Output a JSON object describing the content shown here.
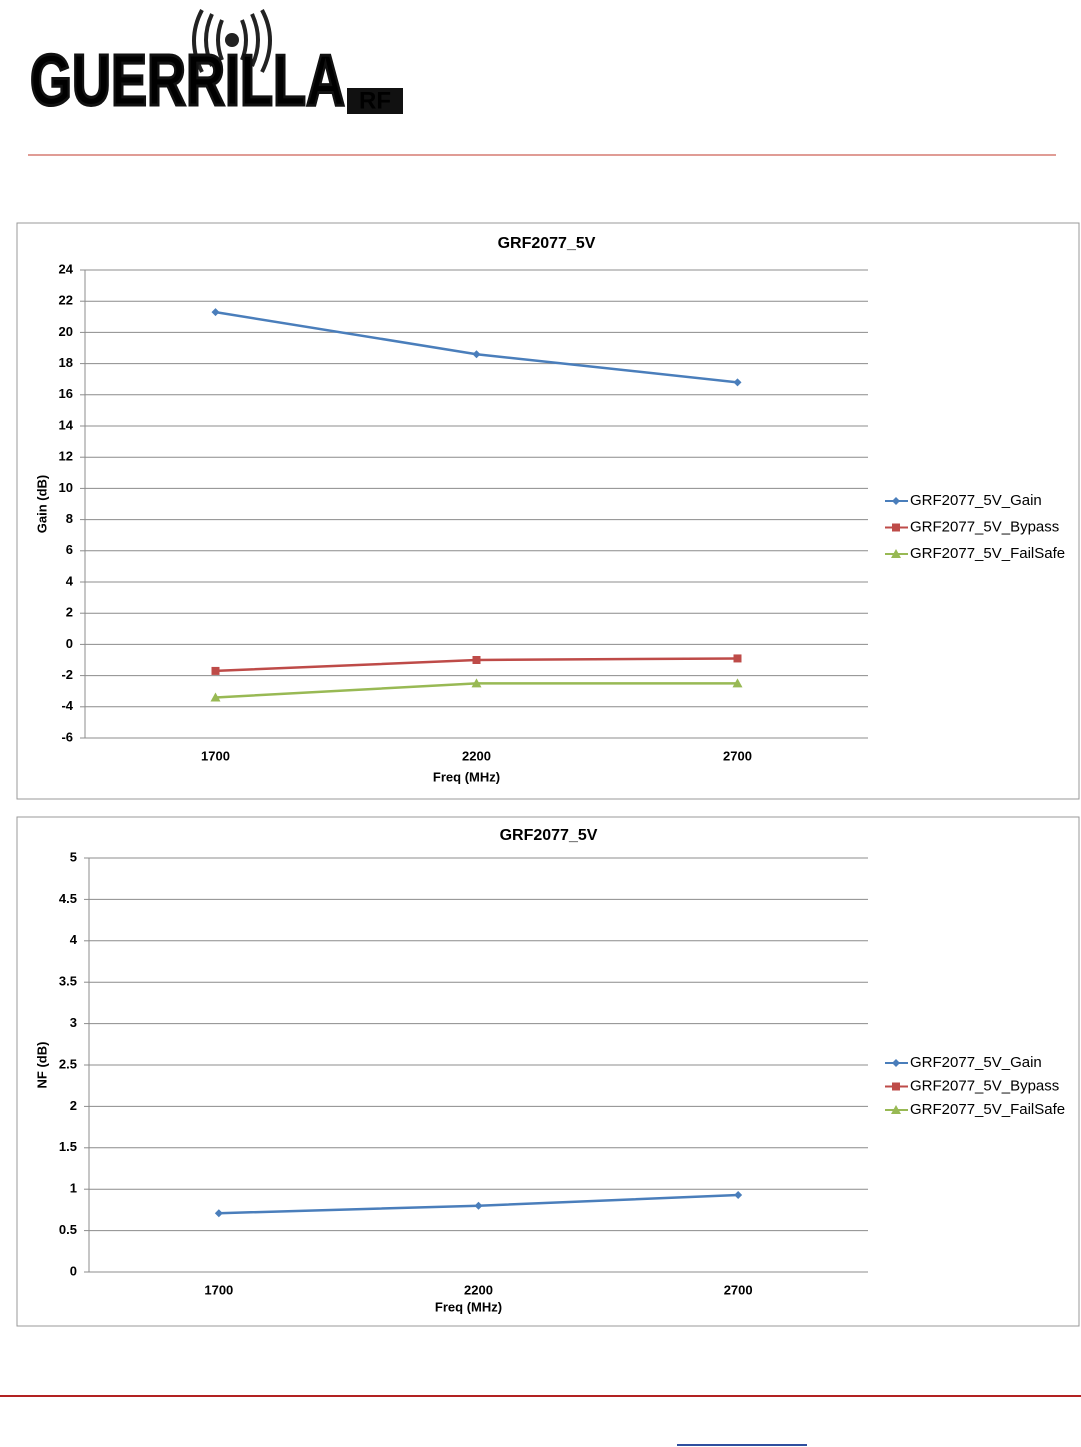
{
  "logo": {
    "name": "GUERRILLA",
    "suffix": "RF"
  },
  "chart_data": [
    {
      "type": "line",
      "title": "GRF2077_5V",
      "x_label": "Freq (MHz)",
      "y_label": "Gain (dB)",
      "categories": [
        "1700",
        "2200",
        "2700"
      ],
      "series": [
        {
          "name": "GRF2077_5V_Gain",
          "color": "#4a7ebb",
          "marker": "diamond",
          "values": [
            21.3,
            18.6,
            16.8
          ]
        },
        {
          "name": "GRF2077_5V_Bypass",
          "color": "#be4b48",
          "marker": "square",
          "values": [
            -1.7,
            -1.0,
            -0.9
          ]
        },
        {
          "name": "GRF2077_5V_FailSafe",
          "color": "#98b954",
          "marker": "triangle",
          "values": [
            -3.4,
            -2.5,
            -2.5
          ]
        }
      ],
      "ylim": [
        -6,
        24
      ],
      "yticks": [
        -6,
        -4,
        -2,
        0,
        2,
        4,
        6,
        8,
        10,
        12,
        14,
        16,
        18,
        20,
        22,
        24
      ],
      "grid": true,
      "legend": "right"
    },
    {
      "type": "line",
      "title": "GRF2077_5V",
      "x_label": "Freq (MHz)",
      "y_label": "NF (dB)",
      "categories": [
        "1700",
        "2200",
        "2700"
      ],
      "series": [
        {
          "name": "GRF2077_5V_Gain",
          "color": "#4a7ebb",
          "marker": "diamond",
          "values": [
            0.71,
            0.8,
            0.93
          ]
        },
        {
          "name": "GRF2077_5V_Bypass",
          "color": "#be4b48",
          "marker": "square",
          "values": [
            null,
            null,
            null
          ]
        },
        {
          "name": "GRF2077_5V_FailSafe",
          "color": "#98b954",
          "marker": "triangle",
          "values": [
            null,
            null,
            null
          ]
        }
      ],
      "ylim": [
        0,
        5
      ],
      "yticks": [
        0,
        0.5,
        1,
        1.5,
        2,
        2.5,
        3,
        3.5,
        4,
        4.5,
        5
      ],
      "grid": true,
      "legend": "right"
    }
  ]
}
